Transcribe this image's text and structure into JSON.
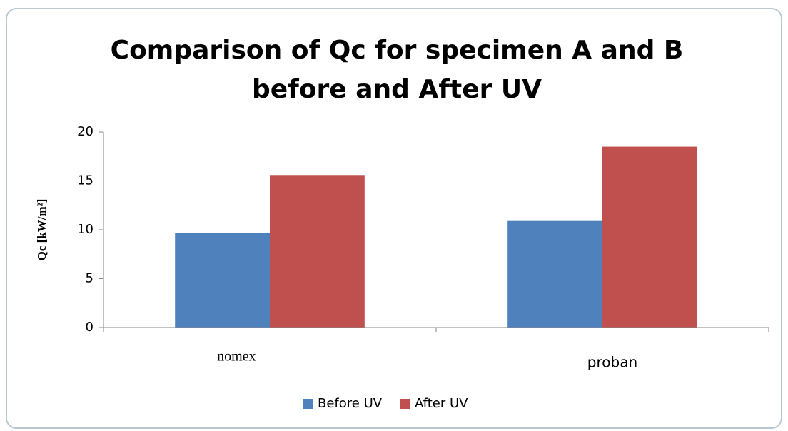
{
  "chart_data": {
    "type": "bar",
    "title": [
      "Comparison of Qc for specimen A and B",
      "before and After UV"
    ],
    "y_label": "Qc [kW/m²]",
    "categories": [
      "nomex",
      "proban"
    ],
    "series": [
      {
        "name": "Before UV",
        "color": "#4f81bd",
        "values": [
          9.7,
          10.9
        ]
      },
      {
        "name": "After UV",
        "color": "#c0504d",
        "values": [
          15.6,
          18.5
        ]
      }
    ],
    "ylim": [
      0,
      20
    ],
    "yticks": [
      0,
      5,
      10,
      15,
      20
    ],
    "grid": false,
    "legend": "bottom"
  }
}
